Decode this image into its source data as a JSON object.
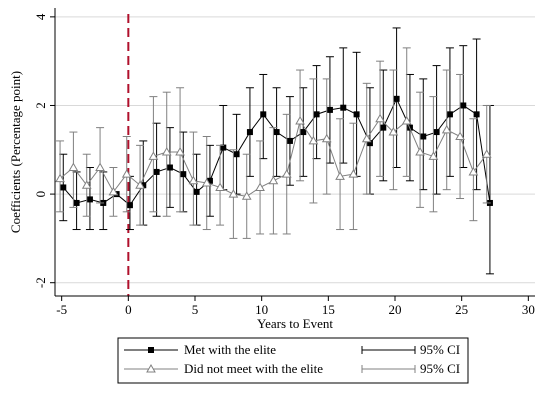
{
  "chart_data": {
    "type": "line",
    "xlabel": "Years to Event",
    "ylabel": "Coefficients (Percentage point)",
    "xlim": [
      -5.5,
      30.5
    ],
    "ylim": [
      -2.3,
      4.2
    ],
    "xticks": [
      -5,
      0,
      5,
      10,
      15,
      20,
      25,
      30
    ],
    "yticks": [
      -2,
      0,
      2,
      4
    ],
    "event_line_x": 0,
    "grid": "horizontal",
    "legend_position": "bottom",
    "colors": {
      "met": "#000000",
      "met_ci": "#000000",
      "not_met": "#808080",
      "not_met_ci": "#808080",
      "event_line": "#b0102c",
      "grid": "#d9d9d9"
    },
    "series": [
      {
        "name": "Met with the elite",
        "marker": "square",
        "x": [
          -5,
          -4,
          -3,
          -2,
          -1,
          0,
          1,
          2,
          3,
          4,
          5,
          6,
          7,
          8,
          9,
          10,
          11,
          12,
          13,
          14,
          15,
          16,
          17,
          18,
          19,
          20,
          21,
          22,
          23,
          24,
          25,
          26,
          27
        ],
        "y": [
          0.15,
          -0.2,
          -0.12,
          -0.2,
          0.0,
          -0.25,
          0.2,
          0.5,
          0.6,
          0.45,
          0.05,
          0.3,
          1.05,
          0.9,
          1.4,
          1.8,
          1.4,
          1.2,
          1.4,
          1.8,
          1.9,
          1.95,
          1.8,
          1.15,
          1.5,
          2.15,
          1.5,
          1.3,
          1.4,
          1.8,
          2.0,
          1.8,
          -0.2
        ],
        "lo": [
          -0.6,
          -0.8,
          -0.8,
          -0.8,
          null,
          -0.8,
          -0.7,
          -0.5,
          -0.3,
          -0.4,
          -0.7,
          -0.5,
          0.1,
          0.0,
          0.4,
          0.8,
          0.4,
          0.2,
          0.4,
          0.8,
          0.7,
          0.7,
          0.4,
          0.0,
          0.3,
          0.6,
          0.3,
          0.1,
          0.0,
          0.4,
          0.6,
          0.1,
          -1.8
        ],
        "hi": [
          0.9,
          0.5,
          0.6,
          0.5,
          null,
          0.4,
          1.2,
          1.6,
          1.5,
          1.4,
          0.9,
          1.1,
          2.0,
          1.8,
          2.4,
          2.7,
          2.4,
          2.2,
          2.4,
          2.9,
          3.1,
          3.3,
          3.2,
          2.4,
          2.8,
          3.75,
          2.7,
          2.6,
          2.9,
          3.3,
          3.35,
          3.5,
          2.0
        ]
      },
      {
        "name": "Did not meet with the elite",
        "marker": "triangle",
        "x": [
          -5,
          -4,
          -3,
          -2,
          -1,
          0,
          1,
          2,
          3,
          4,
          5,
          6,
          7,
          8,
          9,
          10,
          11,
          12,
          13,
          14,
          15,
          16,
          17,
          18,
          19,
          20,
          21,
          22,
          23,
          24,
          25,
          26,
          27
        ],
        "y": [
          0.35,
          0.6,
          0.2,
          0.6,
          0.05,
          0.45,
          0.2,
          0.85,
          0.95,
          0.95,
          0.3,
          0.25,
          0.15,
          0.0,
          -0.05,
          0.15,
          0.3,
          0.45,
          1.65,
          1.2,
          1.25,
          0.4,
          0.45,
          1.25,
          1.7,
          1.4,
          1.65,
          0.95,
          0.85,
          1.45,
          1.3,
          0.5,
          0.9
        ],
        "lo": [
          -0.4,
          -0.3,
          -0.5,
          -0.2,
          -0.5,
          -0.4,
          -0.7,
          -0.4,
          -0.5,
          -0.4,
          -0.7,
          -0.8,
          -0.7,
          -1.0,
          -1.0,
          -0.9,
          -0.9,
          -0.9,
          0.3,
          -0.2,
          0.0,
          -0.8,
          -0.8,
          0.0,
          0.4,
          0.1,
          0.4,
          -0.3,
          -0.4,
          0.1,
          -0.1,
          -0.6,
          -0.2
        ],
        "hi": [
          1.2,
          1.4,
          0.9,
          1.5,
          0.6,
          1.3,
          1.1,
          2.2,
          2.3,
          2.4,
          1.4,
          1.3,
          1.1,
          1.0,
          0.9,
          1.2,
          1.5,
          1.8,
          2.8,
          2.6,
          2.6,
          1.7,
          1.6,
          2.5,
          3.0,
          2.8,
          3.3,
          2.3,
          2.2,
          2.8,
          2.7,
          1.7,
          2.0
        ]
      }
    ],
    "legend": {
      "entries": [
        "Met with the elite",
        "Did not meet with the elite"
      ],
      "ci_labels": [
        "95% CI",
        "95% CI"
      ]
    }
  }
}
